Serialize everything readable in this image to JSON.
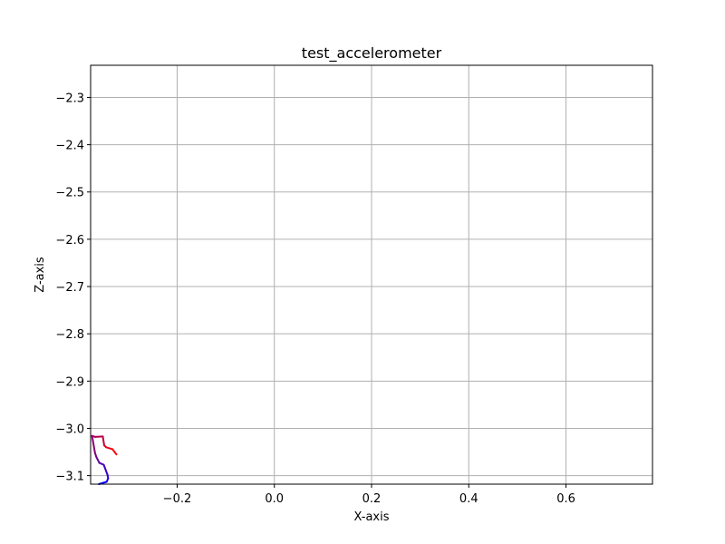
{
  "chart_data": {
    "type": "line",
    "title": "test_accelerometer",
    "xlabel": "X-axis",
    "ylabel": "Z-axis",
    "xlim": [
      -0.378,
      0.778
    ],
    "ylim": [
      -3.118,
      -2.232
    ],
    "xticks": [
      -0.2,
      0.0,
      0.2,
      0.4,
      0.6
    ],
    "xtick_labels": [
      "−0.2",
      "0.0",
      "0.2",
      "0.4",
      "0.6"
    ],
    "yticks": [
      -2.3,
      -2.4,
      -2.5,
      -2.6,
      -2.7,
      -2.8,
      -2.9,
      -3.0,
      -3.1
    ],
    "ytick_labels": [
      "−2.3",
      "−2.4",
      "−2.5",
      "−2.6",
      "−2.7",
      "−2.8",
      "−2.9",
      "−3.0",
      "−3.1"
    ],
    "grid": true,
    "legend": false,
    "color_gradient": {
      "start": "#0000ff",
      "end": "#ff0000"
    },
    "axis_color": "#000000",
    "grid_color": "#b0b0b0",
    "series": [
      {
        "x": [
          -0.361,
          -0.345,
          -0.342,
          -0.343,
          -0.351,
          -0.36,
          -0.366,
          -0.369,
          -0.375,
          -0.369,
          -0.353,
          -0.35,
          -0.346,
          -0.333,
          -0.325
        ],
        "y": [
          -3.118,
          -3.113,
          -3.106,
          -3.099,
          -3.077,
          -3.073,
          -3.061,
          -3.052,
          -3.016,
          -3.018,
          -3.017,
          -3.036,
          -3.04,
          -3.044,
          -3.055
        ]
      }
    ]
  }
}
